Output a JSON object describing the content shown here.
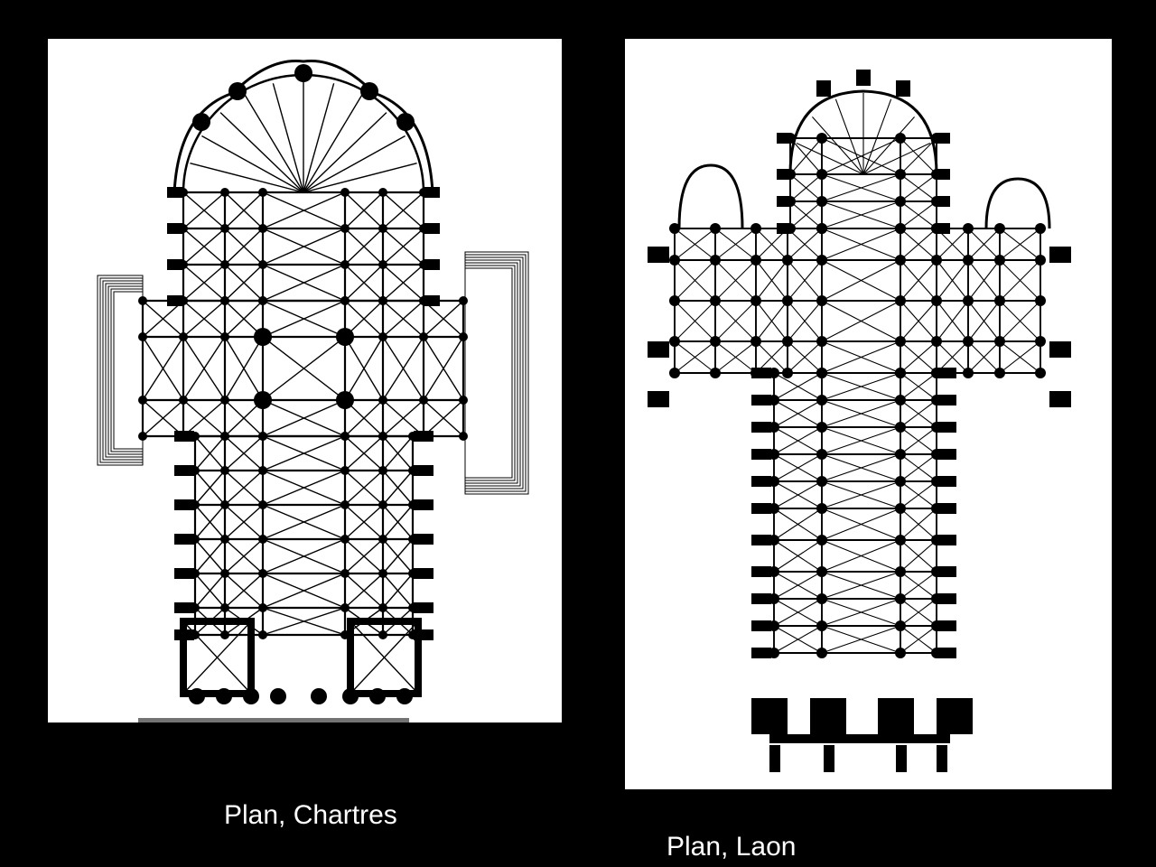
{
  "slide": {
    "background": "#000000",
    "images": [
      {
        "id": "chartres",
        "caption": "Plan, Chartres",
        "subject": "floor-plan-drawing"
      },
      {
        "id": "laon",
        "caption": "Plan, Laon",
        "subject": "floor-plan-drawing"
      }
    ],
    "caption_color": "#ffffff",
    "ink_color": "#000000",
    "paper_color": "#ffffff"
  }
}
